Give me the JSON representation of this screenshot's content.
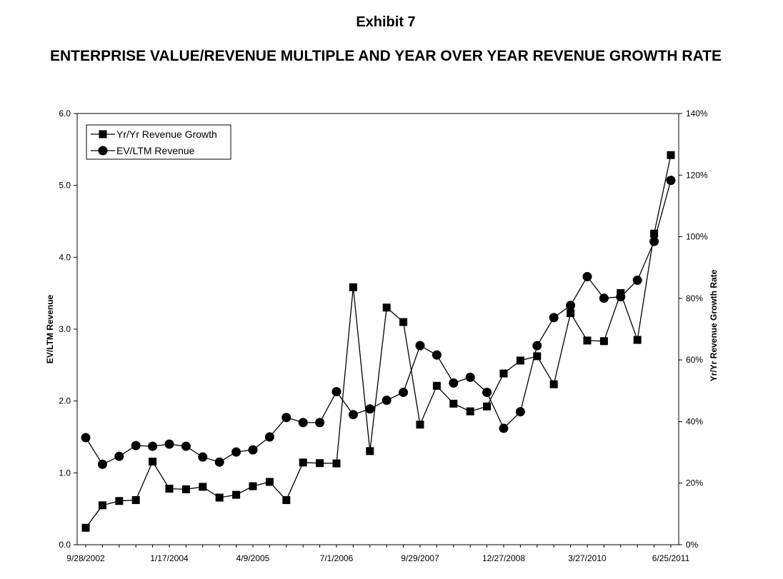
{
  "header": {
    "exhibit": "Exhibit 7",
    "title": "ENTERPRISE VALUE/REVENUE MULTIPLE AND YEAR OVER YEAR REVENUE GROWTH RATE"
  },
  "chart_data": {
    "type": "line",
    "ylabel": "EV/LTM Revenue",
    "y2label": "Yr/Yr Revenue Growth Rate",
    "ylim": [
      0,
      6
    ],
    "y2lim": [
      0,
      140
    ],
    "yticks": [
      "0.0",
      "1.0",
      "2.0",
      "3.0",
      "4.0",
      "5.0",
      "6.0"
    ],
    "y2ticks": [
      "0%",
      "20%",
      "40%",
      "60%",
      "80%",
      "100%",
      "120%",
      "140%"
    ],
    "xtick_labels": [
      "9/28/2002",
      "1/17/2004",
      "4/9/2005",
      "7/1/2006",
      "9/29/2007",
      "12/27/2008",
      "3/27/2010",
      "6/25/2011"
    ],
    "xtick_positions": [
      0,
      5,
      10,
      15,
      20,
      25,
      30,
      35
    ],
    "grid": false,
    "legend_position": "top-left",
    "series": [
      {
        "name": "Yr/Yr Revenue Growth",
        "marker": "square",
        "axis": "right",
        "values": [
          5.5,
          12.8,
          14.2,
          14.5,
          27,
          18.2,
          18,
          18.8,
          15.3,
          16.2,
          19,
          20.4,
          14.5,
          26.7,
          26.5,
          26.4,
          83.6,
          30.4,
          77,
          72.3,
          39,
          51.6,
          45.8,
          43.3,
          44.9,
          55.6,
          59.8,
          61.2,
          52.1,
          75.2,
          66.3,
          66.1,
          81.7,
          66.5,
          101,
          126.5
        ]
      },
      {
        "name": "EV/LTM Revenue",
        "marker": "circle",
        "axis": "left",
        "values": [
          1.49,
          1.12,
          1.23,
          1.38,
          1.37,
          1.4,
          1.37,
          1.22,
          1.15,
          1.29,
          1.32,
          1.5,
          1.77,
          1.7,
          1.7,
          2.13,
          1.81,
          1.89,
          2.01,
          2.12,
          2.77,
          2.64,
          2.25,
          2.33,
          2.12,
          1.62,
          1.85,
          2.77,
          3.16,
          3.33,
          3.73,
          3.43,
          3.45,
          3.68,
          4.22,
          5.07
        ]
      }
    ]
  }
}
